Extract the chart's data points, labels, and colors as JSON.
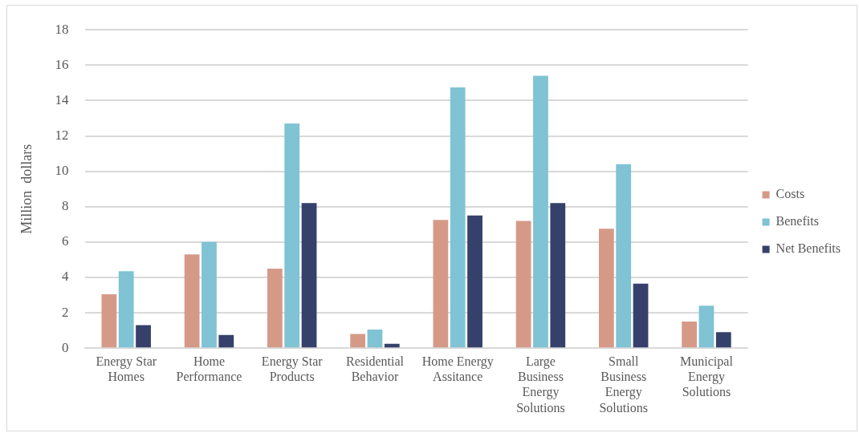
{
  "chart_data": {
    "type": "bar",
    "ylabel": "Million  dollars",
    "categories": [
      "Energy Star Homes",
      "Home Performance",
      "Energy Star Products",
      "Residential Behavior",
      "Home Energy Assitance",
      "Large Business Energy Solutions",
      "Small Business Energy Solutions",
      "Municipal Energy Solutions"
    ],
    "series": [
      {
        "name": "Costs",
        "color": "#d59a87",
        "values": [
          3.05,
          5.3,
          4.5,
          0.8,
          7.25,
          7.2,
          6.75,
          1.5
        ]
      },
      {
        "name": "Benefits",
        "color": "#7fc3d4",
        "values": [
          4.35,
          6.0,
          12.7,
          1.05,
          14.75,
          15.4,
          10.4,
          2.4
        ]
      },
      {
        "name": "Net Benefits",
        "color": "#35416a",
        "values": [
          1.3,
          0.75,
          8.2,
          0.25,
          7.5,
          8.2,
          3.65,
          0.9
        ]
      }
    ],
    "ylim": [
      0,
      18
    ],
    "yticks": [
      0,
      2,
      4,
      6,
      8,
      10,
      12,
      14,
      16,
      18
    ],
    "grid": "y",
    "legend": "right"
  }
}
